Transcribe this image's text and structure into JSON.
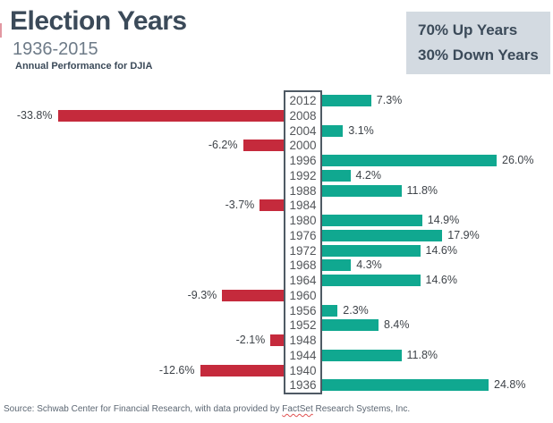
{
  "header": {
    "title": "Election Years",
    "subtitle": "1936-2015",
    "caption": "Annual Performance for DJIA"
  },
  "summary": {
    "up_label": "70% Up Years",
    "down_label": "30% Down Years",
    "background_color": "#d3dae1",
    "text_color": "#3b4a59"
  },
  "footer": {
    "prefix": "Source: Schwab Center for Financial Research, with data provided by ",
    "highlight": "FactSet",
    "suffix": " Research Systems, Inc."
  },
  "chart_data": {
    "type": "bar",
    "orientation": "horizontal",
    "title": "Election Years",
    "subtitle": "1936-2015",
    "caption": "Annual Performance for DJIA",
    "categories": [
      "2012",
      "2008",
      "2004",
      "2000",
      "1996",
      "1992",
      "1988",
      "1984",
      "1980",
      "1976",
      "1972",
      "1968",
      "1964",
      "1960",
      "1956",
      "1952",
      "1948",
      "1944",
      "1940",
      "1936"
    ],
    "values": [
      7.3,
      -33.8,
      3.1,
      -6.2,
      26.0,
      4.2,
      11.8,
      -3.7,
      14.9,
      17.9,
      14.6,
      4.3,
      14.6,
      -9.3,
      2.3,
      8.4,
      -2.1,
      11.8,
      -12.6,
      24.8
    ],
    "value_suffix": "%",
    "value_decimals": 1,
    "up_color": "#10a890",
    "down_color": "#c52a3c",
    "year_box_border_color": "#4f5a64",
    "xlim": [
      -35,
      27
    ],
    "grid": false,
    "legend": "none",
    "bar_labels": "outside-end"
  }
}
